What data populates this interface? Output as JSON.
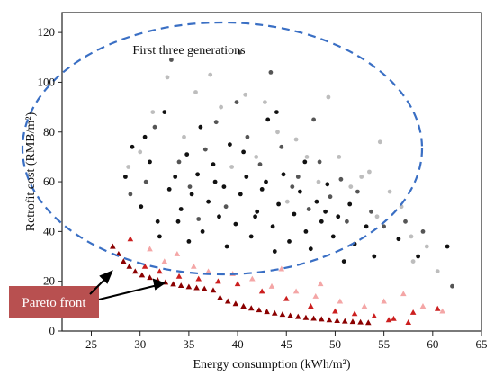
{
  "chart_data": {
    "type": "scatter",
    "xlabel": "Energy consumption (kWh/m²)",
    "ylabel": "Retrofit cost (RMB/m²)",
    "xlim": [
      22,
      65
    ],
    "ylim": [
      0,
      128
    ],
    "x_ticks": [
      "25",
      "30",
      "35",
      "40",
      "45",
      "50",
      "55",
      "60",
      "65"
    ],
    "y_ticks": [
      "0",
      "20",
      "40",
      "60",
      "80",
      "100",
      "120"
    ],
    "grid": false,
    "annotations": {
      "ellipse_label": "First three generations",
      "pareto_label": "Pareto front"
    },
    "colors": {
      "black": "#111111",
      "dark_gray": "#555555",
      "light_gray": "#bdbdbd",
      "pareto_dark": "#8b0000",
      "pareto_mid": "#cc1f1f",
      "pareto_light": "#f4a6a6",
      "ellipse": "#3a6fc4",
      "label_box": "#b85050"
    },
    "series": [
      {
        "marker": "circle",
        "color": "black",
        "values": [
          [
            28.5,
            62
          ],
          [
            29.2,
            74
          ],
          [
            30.1,
            50
          ],
          [
            31.0,
            68
          ],
          [
            31.8,
            44
          ],
          [
            32.5,
            88
          ],
          [
            33.0,
            57
          ],
          [
            33.6,
            62
          ],
          [
            34.2,
            49
          ],
          [
            34.8,
            71
          ],
          [
            35.3,
            55
          ],
          [
            35.9,
            63
          ],
          [
            36.4,
            40
          ],
          [
            37.0,
            52
          ],
          [
            37.5,
            67
          ],
          [
            38.1,
            46
          ],
          [
            38.6,
            58
          ],
          [
            39.2,
            75
          ],
          [
            39.8,
            43
          ],
          [
            40.3,
            55
          ],
          [
            40.9,
            62
          ],
          [
            41.4,
            38
          ],
          [
            42.0,
            48
          ],
          [
            42.5,
            57
          ],
          [
            43.1,
            85
          ],
          [
            43.6,
            42
          ],
          [
            44.2,
            51
          ],
          [
            44.7,
            63
          ],
          [
            45.3,
            36
          ],
          [
            45.8,
            47
          ],
          [
            46.4,
            56
          ],
          [
            47.0,
            40
          ],
          [
            47.5,
            33
          ],
          [
            48.1,
            52
          ],
          [
            48.6,
            44
          ],
          [
            49.2,
            59
          ],
          [
            49.8,
            38
          ],
          [
            50.3,
            46
          ],
          [
            50.9,
            28
          ],
          [
            51.5,
            51
          ],
          [
            52.0,
            35
          ],
          [
            53.2,
            42
          ],
          [
            54.0,
            30
          ],
          [
            56.5,
            37
          ],
          [
            58.5,
            30
          ],
          [
            61.5,
            34
          ],
          [
            30.5,
            78
          ],
          [
            36.2,
            82
          ],
          [
            40.6,
            72
          ],
          [
            44.0,
            88
          ],
          [
            38.9,
            34
          ],
          [
            33.9,
            44
          ],
          [
            46.9,
            68
          ],
          [
            41.8,
            46
          ],
          [
            35.0,
            36
          ],
          [
            32.0,
            38
          ],
          [
            43.8,
            32
          ],
          [
            49.0,
            48
          ],
          [
            37.7,
            60
          ],
          [
            42.9,
            60
          ]
        ]
      },
      {
        "marker": "circle",
        "color": "dark_gray",
        "values": [
          [
            29.0,
            55
          ],
          [
            30.6,
            60
          ],
          [
            31.5,
            82
          ],
          [
            33.2,
            109
          ],
          [
            34.0,
            68
          ],
          [
            35.1,
            58
          ],
          [
            36.7,
            73
          ],
          [
            37.8,
            84
          ],
          [
            38.8,
            50
          ],
          [
            39.9,
            92
          ],
          [
            41.0,
            78
          ],
          [
            42.3,
            67
          ],
          [
            43.4,
            104
          ],
          [
            44.5,
            74
          ],
          [
            45.6,
            58
          ],
          [
            46.2,
            62
          ],
          [
            47.3,
            49
          ],
          [
            48.4,
            68
          ],
          [
            49.5,
            54
          ],
          [
            50.6,
            61
          ],
          [
            51.2,
            44
          ],
          [
            52.3,
            56
          ],
          [
            53.7,
            48
          ],
          [
            55.0,
            42
          ],
          [
            57.2,
            44
          ],
          [
            59.0,
            40
          ],
          [
            62.0,
            18
          ],
          [
            40.2,
            112
          ],
          [
            36.0,
            45
          ],
          [
            47.8,
            85
          ]
        ]
      },
      {
        "marker": "circle",
        "color": "light_gray",
        "values": [
          [
            28.8,
            66
          ],
          [
            30.0,
            72
          ],
          [
            31.3,
            88
          ],
          [
            32.8,
            102
          ],
          [
            34.5,
            78
          ],
          [
            35.7,
            96
          ],
          [
            37.2,
            103
          ],
          [
            38.3,
            90
          ],
          [
            39.4,
            66
          ],
          [
            40.8,
            95
          ],
          [
            41.9,
            70
          ],
          [
            42.8,
            92
          ],
          [
            44.1,
            80
          ],
          [
            45.1,
            52
          ],
          [
            46.0,
            77
          ],
          [
            47.1,
            70
          ],
          [
            48.3,
            60
          ],
          [
            49.3,
            94
          ],
          [
            50.4,
            70
          ],
          [
            51.6,
            58
          ],
          [
            52.7,
            62
          ],
          [
            53.5,
            64
          ],
          [
            54.6,
            76
          ],
          [
            55.6,
            56
          ],
          [
            56.8,
            50
          ],
          [
            58.0,
            28
          ],
          [
            59.4,
            34
          ],
          [
            60.5,
            24
          ],
          [
            57.8,
            38
          ],
          [
            54.3,
            46
          ]
        ]
      },
      {
        "marker": "triangle",
        "color": "pareto_dark",
        "values": [
          [
            27.2,
            34
          ],
          [
            27.8,
            31
          ],
          [
            28.3,
            28
          ],
          [
            28.9,
            26
          ],
          [
            29.5,
            24
          ],
          [
            30.2,
            22.5
          ],
          [
            31.0,
            21.5
          ],
          [
            31.8,
            20.5
          ],
          [
            32.6,
            19.6
          ],
          [
            33.4,
            18.9
          ],
          [
            34.2,
            18.3
          ],
          [
            35.0,
            17.8
          ],
          [
            35.8,
            17.4
          ],
          [
            36.6,
            17.0
          ],
          [
            37.5,
            16.4
          ],
          [
            38.2,
            13.5
          ],
          [
            39.0,
            12.0
          ],
          [
            39.8,
            11.0
          ],
          [
            40.6,
            10.0
          ],
          [
            41.4,
            9.2
          ],
          [
            42.2,
            8.5
          ],
          [
            43.0,
            7.8
          ],
          [
            43.8,
            7.2
          ],
          [
            44.6,
            6.7
          ],
          [
            45.4,
            6.2
          ],
          [
            46.2,
            5.8
          ],
          [
            47.0,
            5.4
          ],
          [
            47.8,
            5.1
          ],
          [
            48.6,
            4.8
          ],
          [
            49.4,
            4.5
          ],
          [
            50.2,
            4.2
          ],
          [
            51.0,
            4.0
          ],
          [
            51.8,
            3.8
          ],
          [
            52.6,
            3.6
          ],
          [
            53.4,
            3.4
          ]
        ]
      },
      {
        "marker": "triangle",
        "color": "pareto_mid",
        "values": [
          [
            29.0,
            37
          ],
          [
            30.5,
            26
          ],
          [
            32.0,
            24
          ],
          [
            34.0,
            22
          ],
          [
            36.0,
            21
          ],
          [
            38.0,
            20
          ],
          [
            40.0,
            19
          ],
          [
            42.5,
            16
          ],
          [
            45.0,
            13
          ],
          [
            47.5,
            10
          ],
          [
            50.0,
            8
          ],
          [
            52.0,
            7
          ],
          [
            54.0,
            6
          ],
          [
            56.0,
            5
          ],
          [
            58.0,
            7.5
          ],
          [
            60.5,
            9
          ],
          [
            55.5,
            4.5
          ],
          [
            57.5,
            3.5
          ]
        ]
      },
      {
        "marker": "triangle",
        "color": "pareto_light",
        "values": [
          [
            31.0,
            33
          ],
          [
            32.5,
            28
          ],
          [
            33.8,
            31
          ],
          [
            35.5,
            26
          ],
          [
            37.0,
            24
          ],
          [
            39.5,
            23
          ],
          [
            41.5,
            21
          ],
          [
            43.5,
            18
          ],
          [
            46.0,
            16
          ],
          [
            48.0,
            14
          ],
          [
            50.5,
            12
          ],
          [
            53.0,
            10
          ],
          [
            55.0,
            12
          ],
          [
            57.0,
            15
          ],
          [
            59.0,
            10
          ],
          [
            61.0,
            8
          ],
          [
            44.5,
            25
          ],
          [
            48.5,
            19
          ]
        ]
      }
    ]
  }
}
